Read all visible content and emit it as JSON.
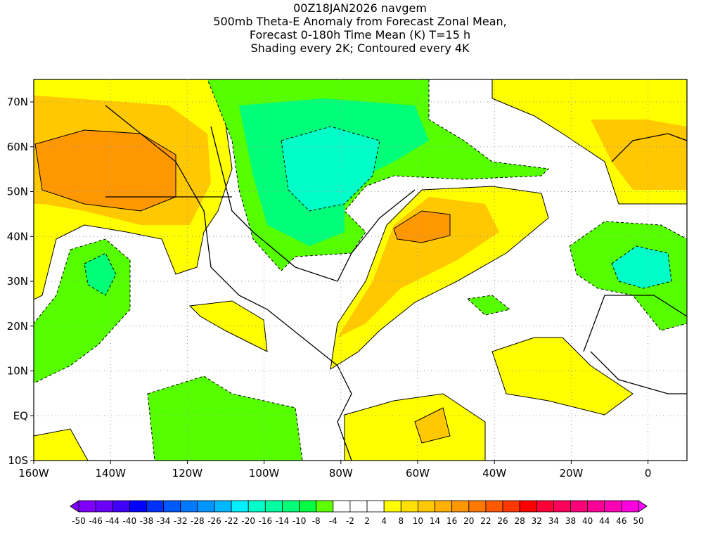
{
  "title": {
    "line1": "00Z18JAN2026 navgem",
    "line2": "500mb Theta-E Anomaly from Forecast Zonal Mean,",
    "line3": "Forecast 0-180h Time Mean (K) T=15 h",
    "line4": "Shading every 2K; Contoured every 4K"
  },
  "axes": {
    "x_ticks": [
      "160W",
      "140W",
      "120W",
      "100W",
      "80W",
      "60W",
      "40W",
      "20W",
      "0"
    ],
    "y_ticks": [
      "70N",
      "60N",
      "50N",
      "40N",
      "30N",
      "20N",
      "10N",
      "EQ",
      "10S"
    ]
  },
  "colorbar": {
    "labels": [
      "-50",
      "-46",
      "-44",
      "-40",
      "-38",
      "-34",
      "-32",
      "-28",
      "-26",
      "-22",
      "-20",
      "-16",
      "-14",
      "-10",
      "-8",
      "-4",
      "-2",
      "2",
      "4",
      "8",
      "10",
      "14",
      "16",
      "20",
      "22",
      "26",
      "28",
      "32",
      "34",
      "38",
      "40",
      "44",
      "46",
      "50"
    ],
    "colors": [
      "#8000ff",
      "#6a00ff",
      "#4000ff",
      "#0000ff",
      "#0030ff",
      "#0058ff",
      "#0078ff",
      "#0096ff",
      "#00b8ff",
      "#00f0ff",
      "#00ffc8",
      "#00ffa0",
      "#00ff78",
      "#00ff40",
      "#60ff00",
      "#ffffff",
      "#ffffff",
      "#ffffff",
      "#ffff00",
      "#ffe000",
      "#ffc800",
      "#ffb000",
      "#ff9800",
      "#ff7800",
      "#ff5a00",
      "#ff3800",
      "#ff0000",
      "#ff0038",
      "#ff005a",
      "#ff0078",
      "#ff0096",
      "#ff00b4",
      "#ff00e0"
    ],
    "low_arrow_color": "#8000ff",
    "high_arrow_color": "#ff00ff"
  }
}
